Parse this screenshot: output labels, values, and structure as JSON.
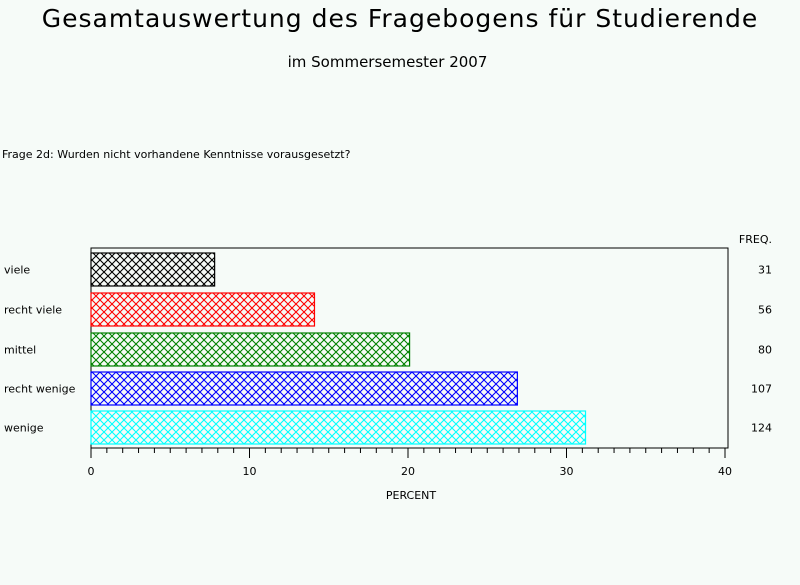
{
  "header": {
    "title": "Gesamtauswertung des Fragebogens für Studierende",
    "subtitle": "im Sommersemester 2007",
    "question": "Frage 2d: Wurden nicht vorhandene Kenntnisse vorausgesetzt?"
  },
  "chart_data": {
    "type": "bar",
    "orientation": "horizontal",
    "categories": [
      "viele",
      "recht viele",
      "mittel",
      "recht wenige",
      "wenige"
    ],
    "values": [
      7.8,
      14.1,
      20.1,
      26.9,
      31.2
    ],
    "freq": [
      31,
      56,
      80,
      107,
      124
    ],
    "freq_label": "FREQ.",
    "xlabel": "PERCENT",
    "xlim": [
      0,
      40
    ],
    "xticks": [
      0,
      10,
      20,
      30,
      40
    ],
    "minor_tick_step": 1,
    "colors": [
      "#000000",
      "#ff0000",
      "#008000",
      "#0000ff",
      "#00ffff"
    ],
    "fill_pattern": "crosshatch",
    "grid": false
  }
}
